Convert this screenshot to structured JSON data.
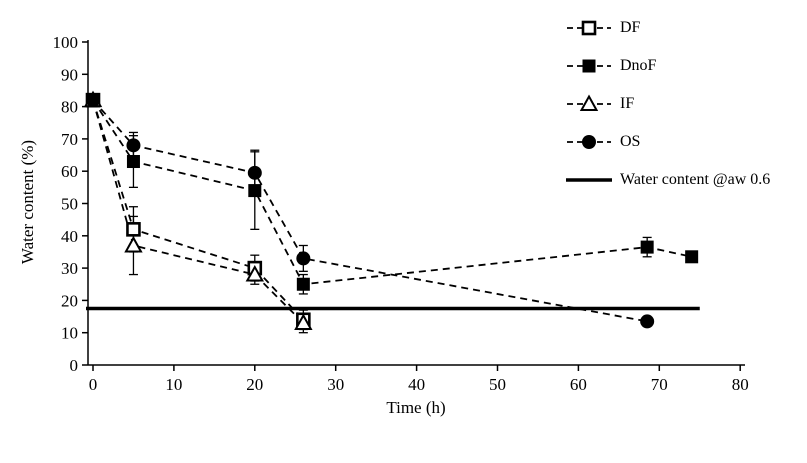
{
  "figure": {
    "background": "#ffffff",
    "foreground": "#000000"
  },
  "chart_data": {
    "type": "scatter",
    "title": "",
    "xlabel": "Time (h)",
    "ylabel": "Water content (%)",
    "xlim": [
      0,
      80
    ],
    "ylim": [
      0,
      100
    ],
    "xticks": [
      0,
      10,
      20,
      30,
      40,
      50,
      60,
      70,
      80
    ],
    "yticks": [
      0,
      10,
      20,
      30,
      40,
      50,
      60,
      70,
      80,
      90,
      100
    ],
    "grid": false,
    "legend_position": "top-right",
    "line_style": "dashed",
    "series": [
      {
        "name": "DF",
        "marker": "open-square",
        "x": [
          0,
          5,
          20,
          26
        ],
        "y": [
          82,
          42,
          30,
          14
        ],
        "yerr": [
          2,
          7,
          4,
          3
        ]
      },
      {
        "name": "DnoF",
        "marker": "filled-square",
        "x": [
          0,
          5,
          20,
          26,
          68.5,
          74
        ],
        "y": [
          82,
          63,
          54,
          25,
          36.5,
          33.5
        ],
        "yerr": [
          2,
          8,
          12,
          3,
          3,
          0
        ]
      },
      {
        "name": "IF",
        "marker": "open-triangle",
        "x": [
          0,
          5,
          20,
          26
        ],
        "y": [
          82,
          37,
          28,
          13
        ],
        "yerr": [
          2,
          9,
          3,
          3
        ]
      },
      {
        "name": "OS",
        "marker": "filled-circle",
        "x": [
          0,
          5,
          20,
          26,
          68.5
        ],
        "y": [
          82,
          68,
          59.5,
          33,
          13.5
        ],
        "yerr": [
          2,
          4,
          7,
          4,
          0
        ]
      }
    ],
    "hline": {
      "label": "Water content @aw 0.6",
      "y": 17.5,
      "x": [
        0,
        75
      ]
    }
  }
}
